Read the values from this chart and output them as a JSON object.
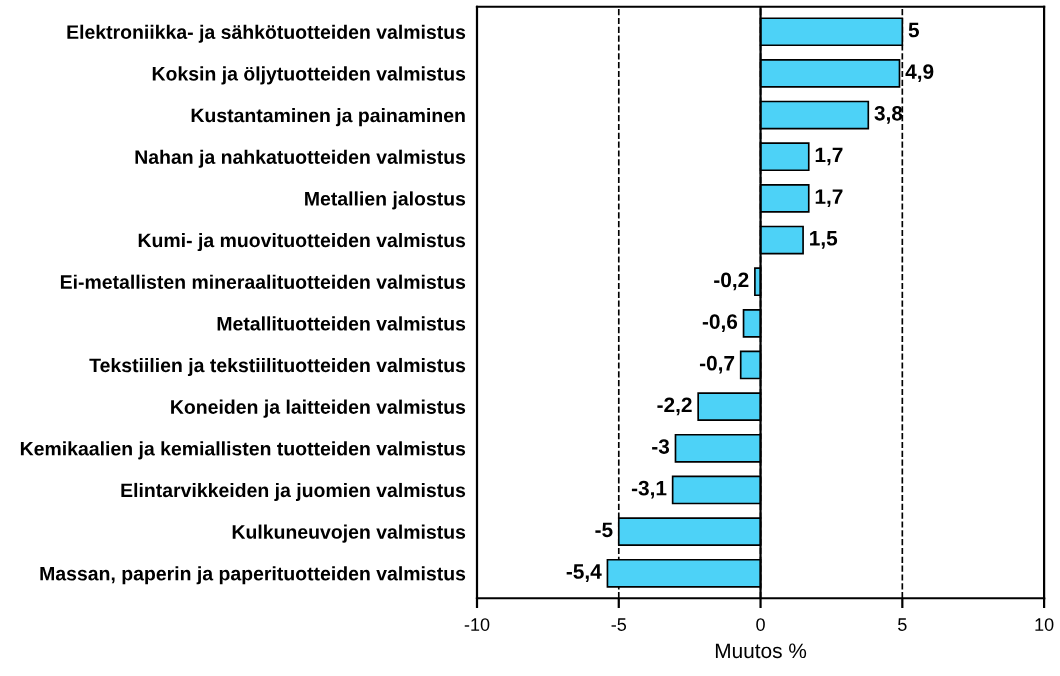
{
  "chart_data": {
    "type": "bar",
    "orientation": "horizontal",
    "xlabel": "Muutos %",
    "categories": [
      "Elektroniikka- ja sähkötuotteiden valmistus",
      "Koksin ja öljytuotteiden valmistus",
      "Kustantaminen ja painaminen",
      "Nahan ja nahkatuotteiden valmistus",
      "Metallien jalostus",
      "Kumi- ja muovituotteiden valmistus",
      "Ei-metallisten mineraalituotteiden valmistus",
      "Metallituotteiden valmistus",
      "Tekstiilien ja tekstiilituotteiden valmistus",
      "Koneiden ja laitteiden valmistus",
      "Kemikaalien ja kemiallisten tuotteiden valmistus",
      "Elintarvikkeiden ja juomien valmistus",
      "Kulkuneuvojen valmistus",
      "Massan, paperin ja paperituotteiden valmistus"
    ],
    "values": [
      5,
      4.9,
      3.8,
      1.7,
      1.7,
      1.5,
      -0.2,
      -0.6,
      -0.7,
      -2.2,
      -3,
      -3.1,
      -5,
      -5.4
    ],
    "value_labels": [
      "5",
      "4,9",
      "3,8",
      "1,7",
      "1,7",
      "1,5",
      "-0,2",
      "-0,6",
      "-0,7",
      "-2,2",
      "-3",
      "-3,1",
      "-5",
      "-5,4"
    ],
    "color": "#4dd2f7",
    "xlim": [
      -10,
      10
    ],
    "xticks": [
      -10,
      -5,
      0,
      5,
      10
    ],
    "grid": "x",
    "line_style": "dashed"
  }
}
